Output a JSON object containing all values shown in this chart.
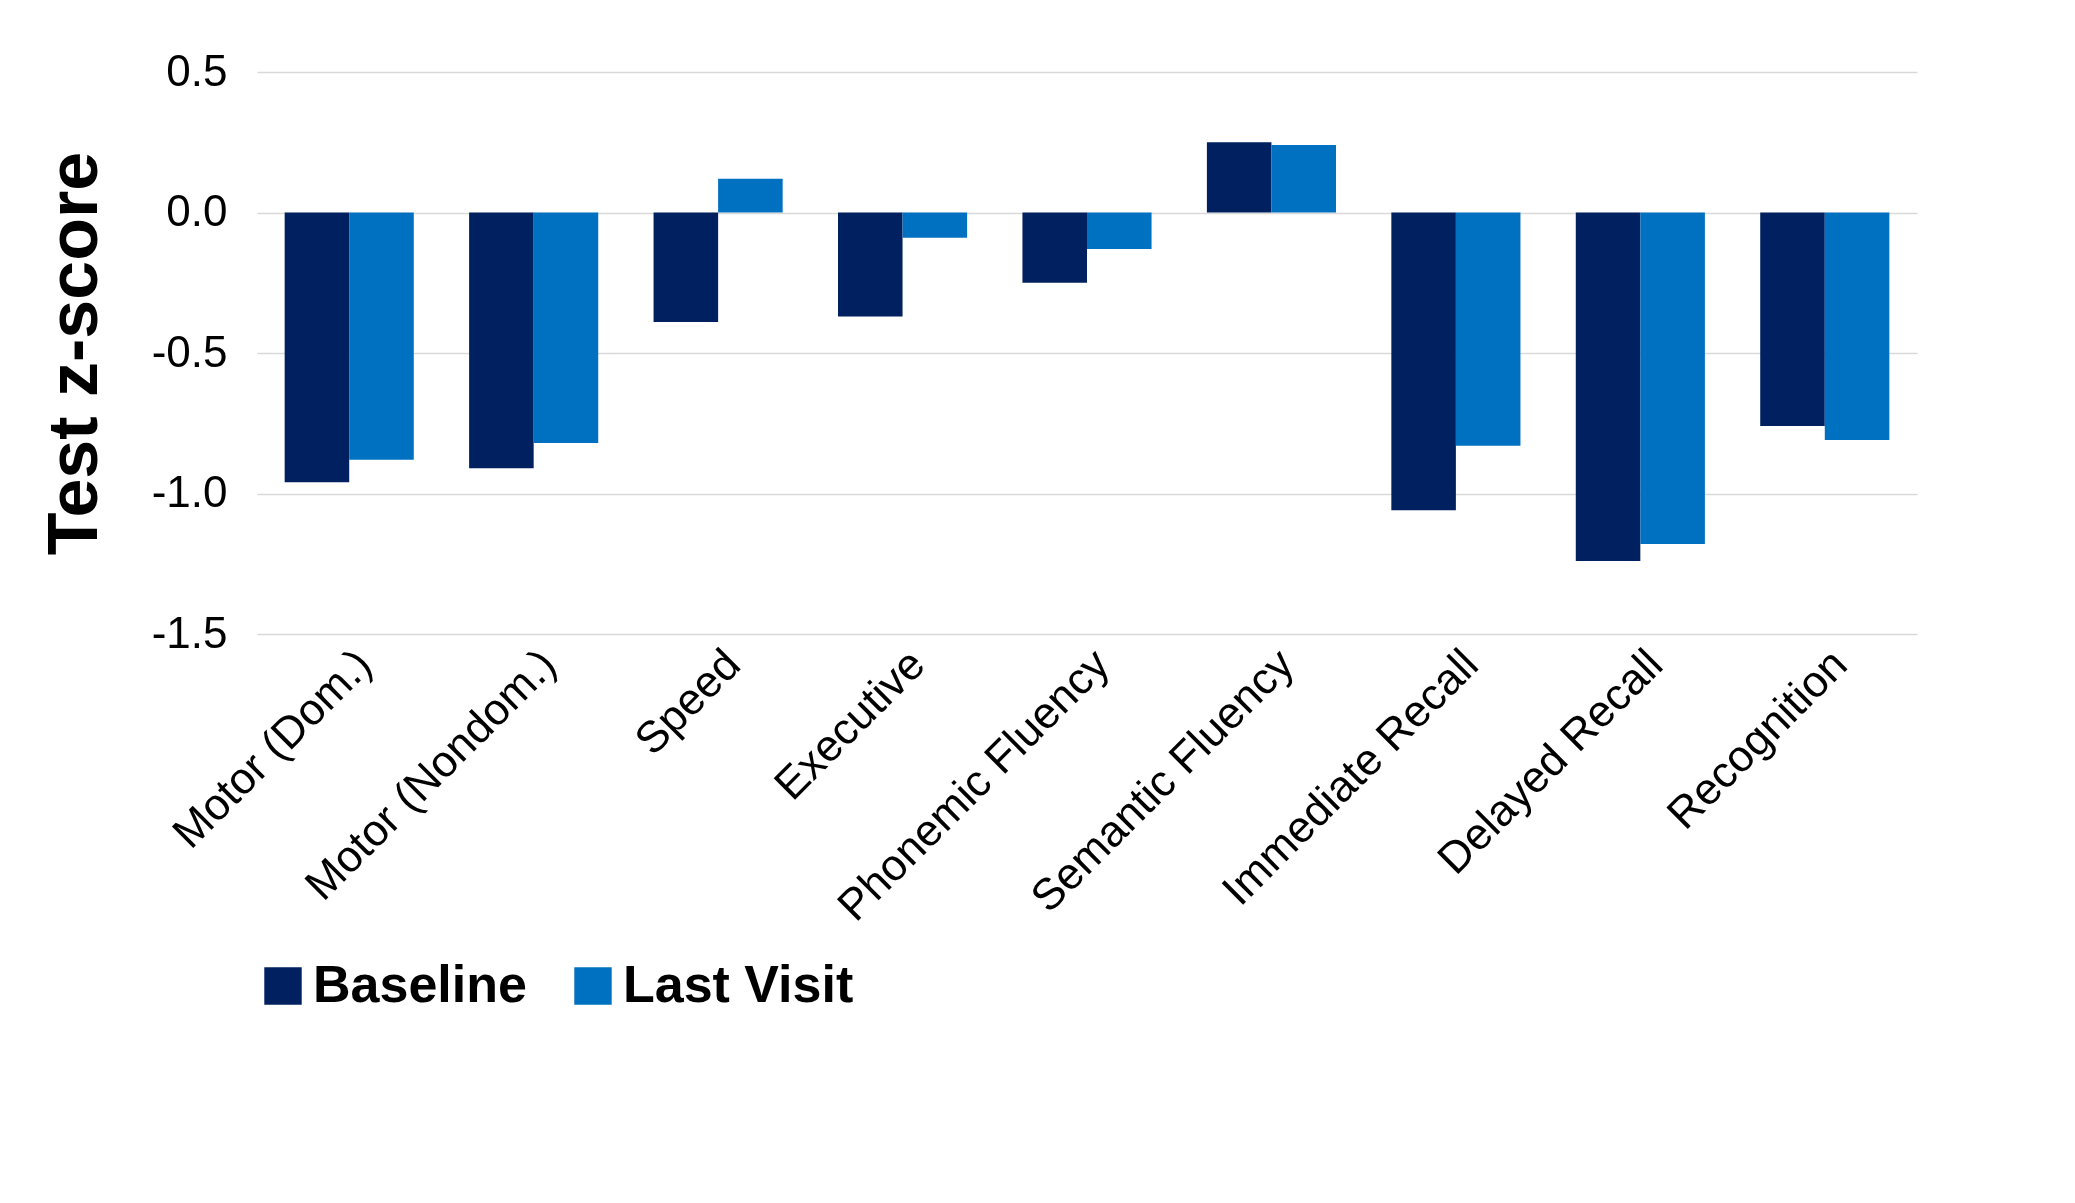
{
  "chart_data": {
    "type": "bar",
    "ylabel": "Test z-score",
    "categories": [
      "Motor (Dom.)",
      "Motor (Nondom.)",
      "Speed",
      "Executive",
      "Phonemic Fluency",
      "Semantic Fluency",
      "Immediate Recall",
      "Delayed Recall",
      "Recognition"
    ],
    "series": [
      {
        "name": "Baseline",
        "color": "#002060",
        "values": [
          -0.96,
          -0.91,
          -0.39,
          -0.37,
          -0.25,
          0.25,
          -1.06,
          -1.24,
          -0.76
        ]
      },
      {
        "name": "Last Visit",
        "color": "#0070c0",
        "values": [
          -0.88,
          -0.82,
          0.12,
          -0.09,
          -0.13,
          0.24,
          -0.83,
          -1.18,
          -0.81
        ]
      }
    ],
    "ylim": [
      -1.5,
      0.5
    ],
    "yticks": [
      {
        "value": -1.5,
        "label": "-1.5"
      },
      {
        "value": -1,
        "label": "-1.0"
      },
      {
        "value": -0.5,
        "label": "-0.5"
      },
      {
        "value": 0,
        "label": "0.0"
      },
      {
        "value": 0.5,
        "label": "0.5"
      }
    ],
    "grid": "y",
    "legend": "bottom"
  }
}
